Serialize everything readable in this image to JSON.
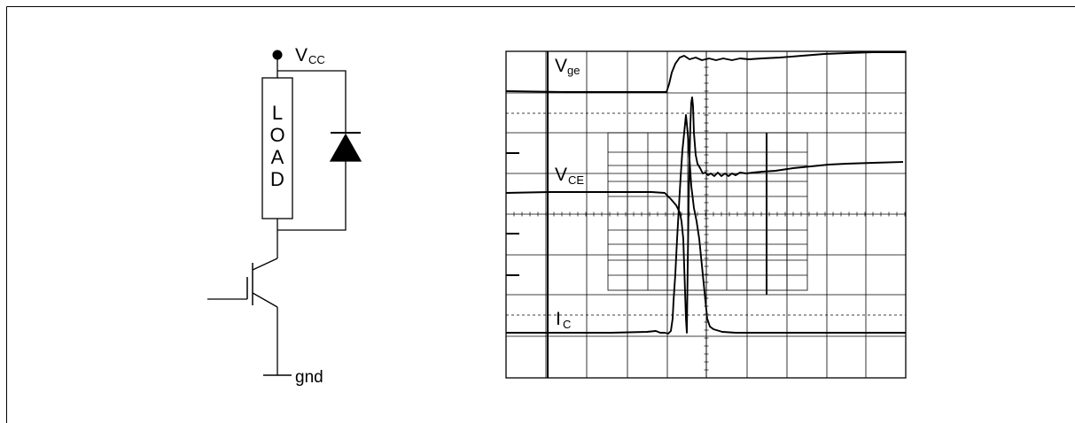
{
  "circuit": {
    "supply_label": {
      "main": "V",
      "sub": "CC"
    },
    "load_letters": [
      "L",
      "O",
      "A",
      "D"
    ],
    "ground_label": "gnd"
  },
  "scope": {
    "trace_labels": {
      "vge": {
        "main": "V",
        "sub": "ge"
      },
      "vce": {
        "main": "V",
        "sub": "CE"
      },
      "ic": {
        "main": "I",
        "sub": "C"
      }
    }
  }
}
